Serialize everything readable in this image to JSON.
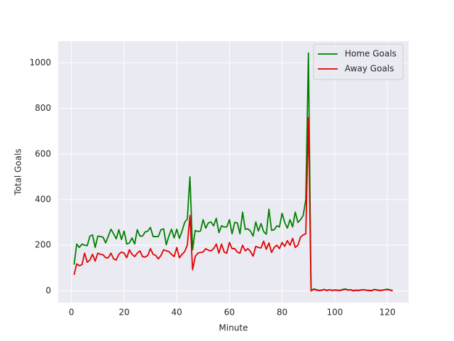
{
  "chart_data": {
    "type": "line",
    "xlabel": "Minute",
    "ylabel": "Total Goals",
    "x": [
      1,
      2,
      3,
      4,
      5,
      6,
      7,
      8,
      9,
      10,
      11,
      12,
      13,
      14,
      15,
      16,
      17,
      18,
      19,
      20,
      21,
      22,
      23,
      24,
      25,
      26,
      27,
      28,
      29,
      30,
      31,
      32,
      33,
      34,
      35,
      36,
      37,
      38,
      39,
      40,
      41,
      42,
      43,
      44,
      45,
      46,
      47,
      48,
      49,
      50,
      51,
      52,
      53,
      54,
      55,
      56,
      57,
      58,
      59,
      60,
      61,
      62,
      63,
      64,
      65,
      66,
      67,
      68,
      69,
      70,
      71,
      72,
      73,
      74,
      75,
      76,
      77,
      78,
      79,
      80,
      81,
      82,
      83,
      84,
      85,
      86,
      87,
      88,
      89,
      90,
      91,
      92,
      93,
      94,
      95,
      96,
      97,
      98,
      99,
      100,
      101,
      102,
      103,
      104,
      105,
      106,
      107,
      108,
      109,
      110,
      111,
      112,
      113,
      114,
      115,
      116,
      117,
      118,
      119,
      120,
      121,
      122
    ],
    "series": [
      {
        "name": "Home Goals",
        "color": "#008000",
        "values": [
          115,
          205,
          190,
          205,
          200,
          198,
          240,
          245,
          190,
          240,
          238,
          235,
          210,
          240,
          270,
          250,
          228,
          268,
          225,
          262,
          205,
          210,
          232,
          205,
          268,
          240,
          240,
          258,
          262,
          278,
          238,
          238,
          238,
          268,
          272,
          202,
          240,
          270,
          232,
          270,
          230,
          262,
          300,
          315,
          500,
          180,
          265,
          260,
          262,
          312,
          275,
          298,
          302,
          285,
          318,
          255,
          285,
          280,
          280,
          312,
          250,
          300,
          298,
          250,
          345,
          270,
          272,
          262,
          240,
          302,
          262,
          295,
          260,
          248,
          358,
          265,
          268,
          285,
          280,
          340,
          300,
          275,
          312,
          280,
          345,
          300,
          312,
          330,
          400,
          1043,
          0,
          8,
          5,
          2,
          3,
          6,
          2,
          5,
          1,
          4,
          3,
          2,
          6,
          8,
          4,
          5,
          1,
          3,
          2,
          4,
          5,
          3,
          2,
          1,
          6,
          4,
          2,
          3,
          5,
          7,
          4,
          1
        ]
      },
      {
        "name": "Away Goals",
        "color": "#e00000",
        "values": [
          70,
          118,
          110,
          115,
          165,
          125,
          135,
          160,
          130,
          165,
          160,
          158,
          145,
          145,
          165,
          140,
          135,
          160,
          170,
          165,
          145,
          180,
          160,
          150,
          165,
          175,
          150,
          148,
          155,
          185,
          160,
          155,
          140,
          155,
          180,
          175,
          172,
          160,
          150,
          190,
          145,
          160,
          172,
          200,
          330,
          92,
          150,
          165,
          168,
          170,
          185,
          178,
          175,
          185,
          205,
          165,
          205,
          170,
          165,
          212,
          185,
          185,
          170,
          165,
          200,
          175,
          185,
          172,
          152,
          195,
          190,
          188,
          218,
          182,
          210,
          168,
          190,
          200,
          185,
          212,
          195,
          220,
          200,
          230,
          190,
          200,
          235,
          245,
          250,
          760,
          0,
          6,
          3,
          1,
          2,
          5,
          1,
          4,
          2,
          3,
          2,
          1,
          4,
          6,
          3,
          4,
          0,
          2,
          1,
          3,
          4,
          2,
          1,
          0,
          5,
          3,
          1,
          2,
          4,
          5,
          3,
          0
        ]
      }
    ],
    "xlim": [
      -5.05,
      128.05
    ],
    "xticks": [
      0,
      20,
      40,
      60,
      80,
      100,
      120
    ],
    "ylim": [
      -52,
      1095
    ],
    "yticks": [
      0,
      200,
      400,
      600,
      800,
      1000
    ],
    "grid": true,
    "legend": "upper right"
  }
}
